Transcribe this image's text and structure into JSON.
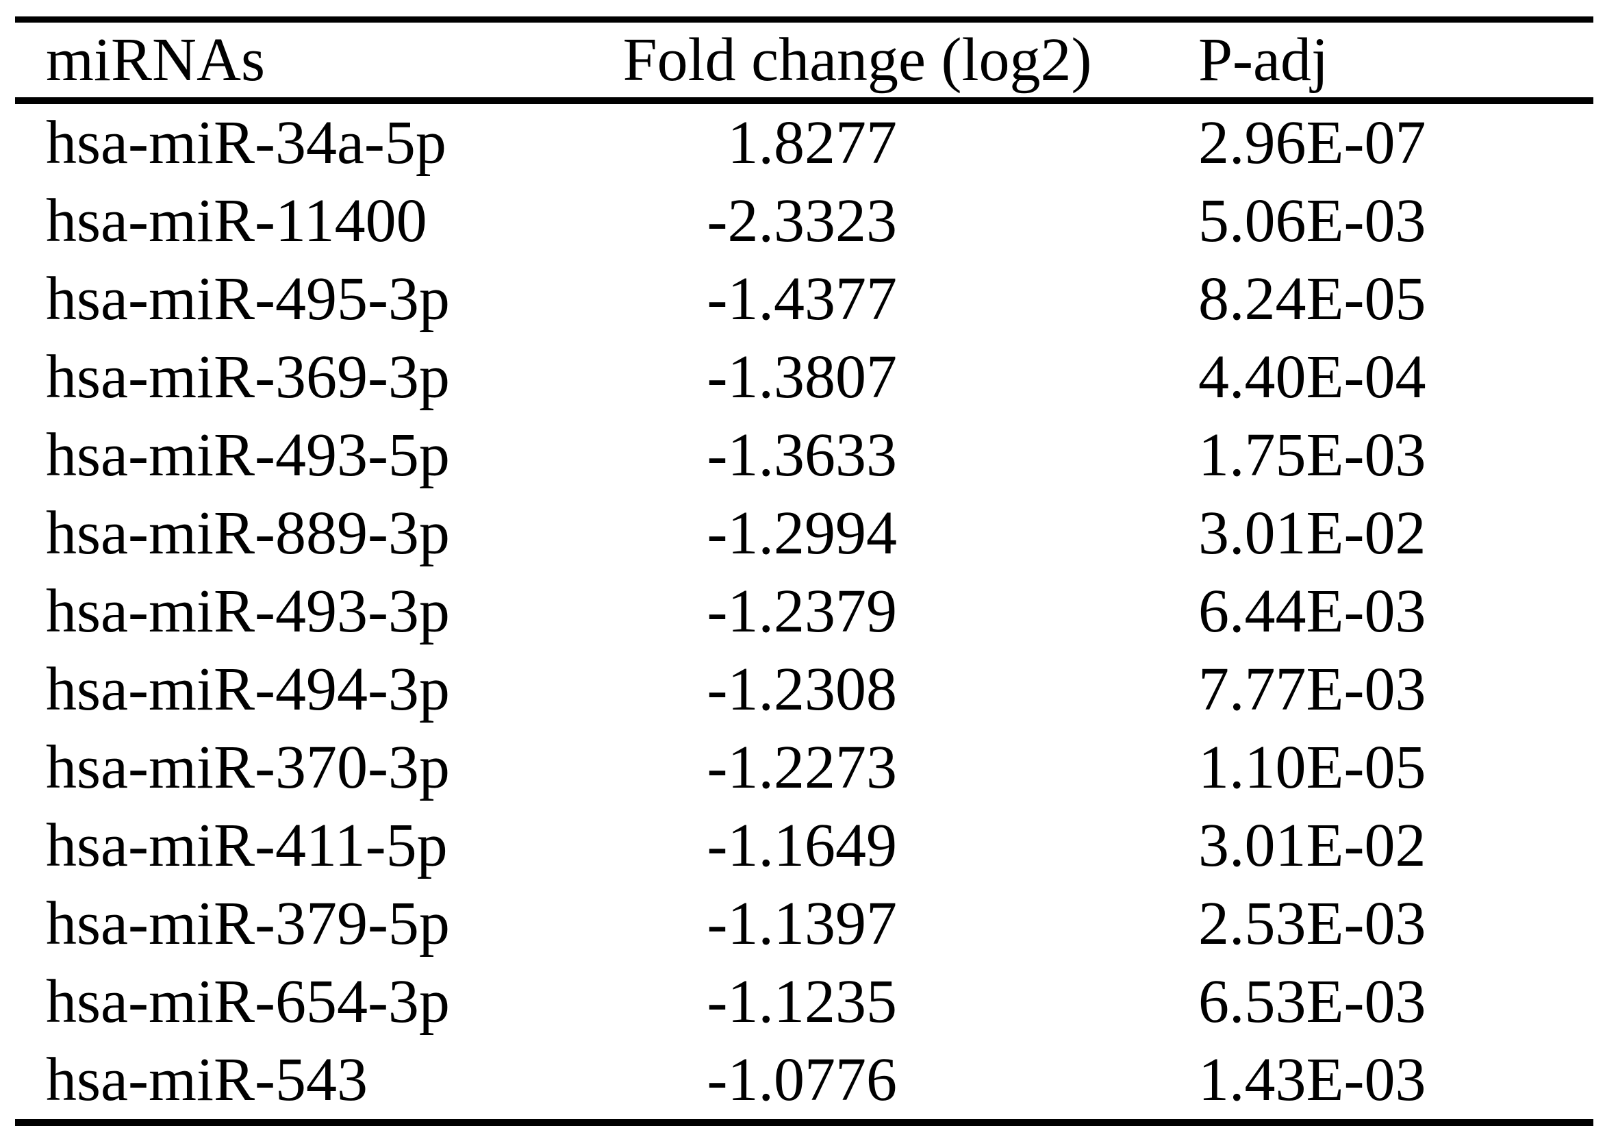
{
  "page": {
    "background_color": "#ffffff",
    "text_color": "#000000",
    "rule_color": "#000000"
  },
  "table": {
    "columns": [
      "miRNAs",
      "Fold change (log2)",
      "P-adj"
    ],
    "rows": [
      {
        "miRNA": "hsa-miR-34a-5p",
        "fold_change": "1.8277",
        "p_adj": "2.96E-07"
      },
      {
        "miRNA": "hsa-miR-11400",
        "fold_change": "-2.3323",
        "p_adj": "5.06E-03"
      },
      {
        "miRNA": "hsa-miR-495-3p",
        "fold_change": "-1.4377",
        "p_adj": "8.24E-05"
      },
      {
        "miRNA": "hsa-miR-369-3p",
        "fold_change": "-1.3807",
        "p_adj": "4.40E-04"
      },
      {
        "miRNA": "hsa-miR-493-5p",
        "fold_change": "-1.3633",
        "p_adj": "1.75E-03"
      },
      {
        "miRNA": "hsa-miR-889-3p",
        "fold_change": "-1.2994",
        "p_adj": "3.01E-02"
      },
      {
        "miRNA": "hsa-miR-493-3p",
        "fold_change": "-1.2379",
        "p_adj": "6.44E-03"
      },
      {
        "miRNA": "hsa-miR-494-3p",
        "fold_change": "-1.2308",
        "p_adj": "7.77E-03"
      },
      {
        "miRNA": "hsa-miR-370-3p",
        "fold_change": "-1.2273",
        "p_adj": "1.10E-05"
      },
      {
        "miRNA": "hsa-miR-411-5p",
        "fold_change": "-1.1649",
        "p_adj": "3.01E-02"
      },
      {
        "miRNA": "hsa-miR-379-5p",
        "fold_change": "-1.1397",
        "p_adj": "2.53E-03"
      },
      {
        "miRNA": "hsa-miR-654-3p",
        "fold_change": "-1.1235",
        "p_adj": "6.53E-03"
      },
      {
        "miRNA": "hsa-miR-543",
        "fold_change": "-1.0776",
        "p_adj": "1.43E-03"
      }
    ]
  }
}
